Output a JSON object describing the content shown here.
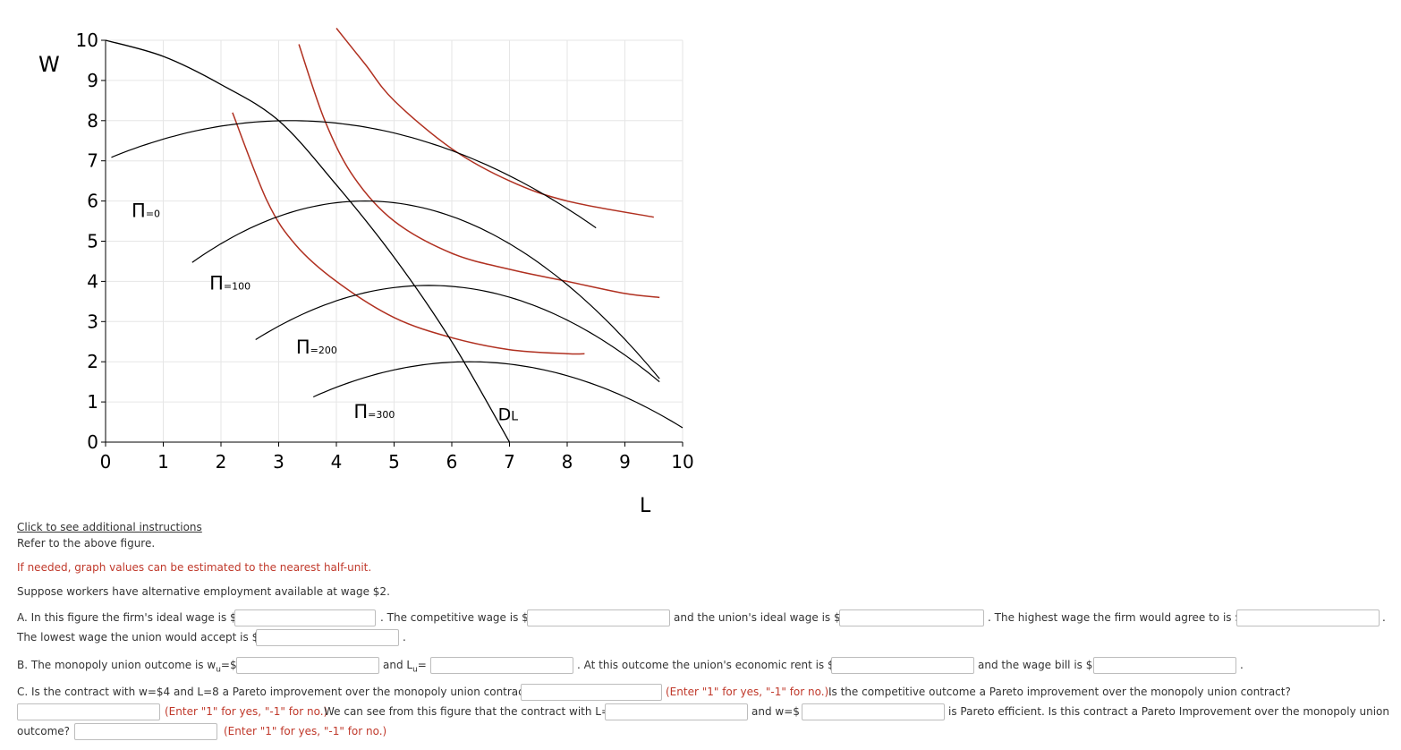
{
  "chart_data": {
    "type": "line",
    "xlabel": "L",
    "ylabel": "W",
    "xlim": [
      0,
      10
    ],
    "ylim": [
      0,
      10
    ],
    "x_ticks": [
      "0",
      "1",
      "2",
      "3",
      "4",
      "5",
      "6",
      "7",
      "8",
      "9",
      "10"
    ],
    "y_ticks": [
      "0",
      "1",
      "2",
      "3",
      "4",
      "5",
      "6",
      "7",
      "8",
      "9",
      "10"
    ],
    "grid": true,
    "demand_curve": {
      "name": "DL",
      "color": "#000000",
      "points": [
        [
          0,
          10
        ],
        [
          1,
          9.6
        ],
        [
          2,
          8.9
        ],
        [
          3,
          8.0
        ],
        [
          4,
          6.4
        ],
        [
          5,
          4.6
        ],
        [
          6,
          2.5
        ],
        [
          7,
          0
        ]
      ]
    },
    "isoprofit_curves": [
      {
        "name": "Π=0",
        "label_main": "Π",
        "label_sub": "=0",
        "peak": [
          3.2,
          8.0
        ],
        "x_range": [
          0.1,
          8.5
        ],
        "a": 0.095
      },
      {
        "name": "Π=100",
        "label_main": "Π",
        "label_sub": "=100",
        "peak": [
          4.5,
          6.0
        ],
        "x_range": [
          1.5,
          9.6
        ],
        "a": 0.17
      },
      {
        "name": "Π=200",
        "label_main": "Π",
        "label_sub": "=200",
        "peak": [
          5.6,
          3.9
        ],
        "x_range": [
          2.6,
          9.6
        ],
        "a": 0.15
      },
      {
        "name": "Π=300",
        "label_main": "Π",
        "label_sub": "=300",
        "peak": [
          6.3,
          2.0
        ],
        "x_range": [
          3.6,
          10.0
        ],
        "a": 0.12
      }
    ],
    "indifference_curves": {
      "color": "#b03020",
      "curves": [
        {
          "points": [
            [
              2.2,
              8.2
            ],
            [
              2.8,
              6.0
            ],
            [
              3.3,
              4.9
            ],
            [
              4.0,
              4.0
            ],
            [
              5.0,
              3.1
            ],
            [
              6.0,
              2.6
            ],
            [
              7.0,
              2.3
            ],
            [
              8.0,
              2.2
            ],
            [
              8.3,
              2.2
            ]
          ]
        },
        {
          "points": [
            [
              3.35,
              9.9
            ],
            [
              3.8,
              8.0
            ],
            [
              4.3,
              6.6
            ],
            [
              5.0,
              5.5
            ],
            [
              6.0,
              4.7
            ],
            [
              7.0,
              4.3
            ],
            [
              8.0,
              4.0
            ],
            [
              9.0,
              3.7
            ],
            [
              9.6,
              3.6
            ]
          ]
        },
        {
          "points": [
            [
              4.0,
              10.3
            ],
            [
              4.5,
              9.4
            ],
            [
              5.0,
              8.5
            ],
            [
              6.0,
              7.3
            ],
            [
              7.0,
              6.5
            ],
            [
              8.0,
              6.0
            ],
            [
              9.5,
              5.6
            ]
          ]
        }
      ]
    }
  },
  "instructions_link": "Click to see additional instructions",
  "refer_text": "Refer to the above figure.",
  "note": "If needed, graph values can be estimated to the nearest half-unit.",
  "premise": "Suppose workers have alternative employment available at wage $2.",
  "q_a": {
    "t1": "A. In this figure the firm's ideal wage is $",
    "t2": ". The competitive wage is $",
    "t3": "and the union's ideal wage is $",
    "t4": ". The highest wage the firm would agree to is $",
    "t5": ".",
    "t6": "The lowest wage the union would accept is $",
    "t7": "."
  },
  "q_b": {
    "t1": "B. The monopoly union outcome is w",
    "t1_sub": "u",
    "t1_end": "=$",
    "t2": "and L",
    "t2_sub": "u",
    "t2_end": "=",
    "t3": ". At this outcome the union's economic rent is $",
    "t4": "and the wage bill is $",
    "t5": "."
  },
  "q_c": {
    "t1": "C. Is the contract with w=$4 and L=8 a Pareto improvement over the monopoly union contract?",
    "hint1": "(Enter \"1\" for yes, \"-1\" for no.).",
    "t2": "Is the competitive outcome a Pareto improvement over the monopoly union contract?",
    "hint2": "(Enter \"1\" for yes, \"-1\" for no.)",
    "t3": "We can see from this figure that the contract with L=",
    "t4": "and w=$",
    "t5": "is Pareto efficient. Is this contract a Pareto Improvement over the monopoly union",
    "t6": "outcome?",
    "hint3": "(Enter \"1\" for yes, \"-1\" for no.)"
  }
}
